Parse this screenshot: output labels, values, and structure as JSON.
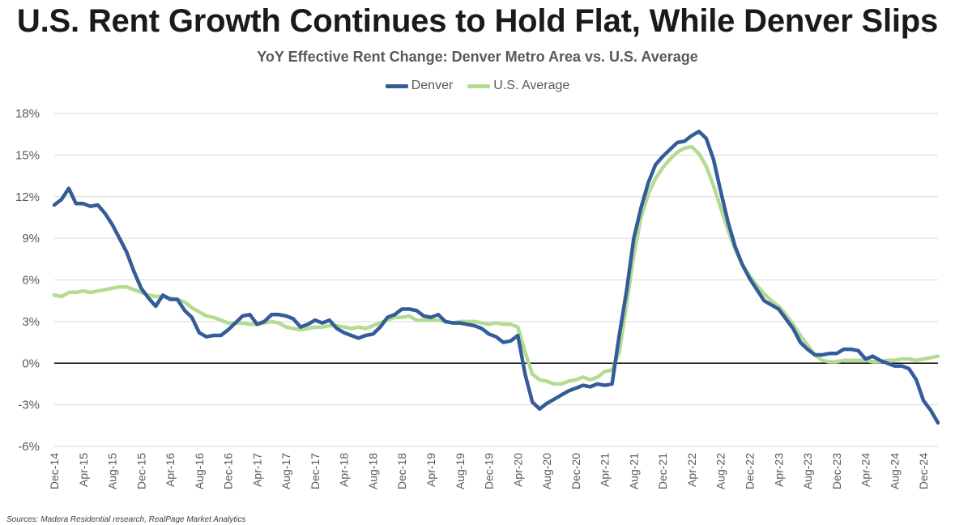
{
  "title": "U.S. Rent Growth Continues to Hold Flat, While Denver Slips",
  "subtitle": "YoY Effective Rent Change: Denver Metro Area vs. U.S. Average",
  "source": "Sources: Madera Residential research, RealPage Market Analytics",
  "colors": {
    "denver": "#345c99",
    "us": "#b3dc92",
    "grid": "#d9d9d9",
    "zero": "#000000"
  },
  "chart_data": {
    "type": "line",
    "title": "YoY Effective Rent Change: Denver Metro Area vs. U.S. Average",
    "xlabel": "",
    "ylabel": "",
    "ylim": [
      -6,
      18
    ],
    "yticks": [
      18,
      15,
      12,
      9,
      6,
      3,
      0,
      -3,
      -6
    ],
    "ytick_labels": [
      "18%",
      "15%",
      "12%",
      "9%",
      "6%",
      "3%",
      "0%",
      "-3%",
      "-6%"
    ],
    "xtick_labels": [
      "Dec-14",
      "Apr-15",
      "Aug-15",
      "Dec-15",
      "Apr-16",
      "Aug-16",
      "Dec-16",
      "Apr-17",
      "Aug-17",
      "Dec-17",
      "Apr-18",
      "Aug-18",
      "Dec-18",
      "Apr-19",
      "Aug-19",
      "Dec-19",
      "Apr-20",
      "Aug-20",
      "Dec-20",
      "Apr-21",
      "Aug-21",
      "Dec-21",
      "Apr-22",
      "Aug-22",
      "Dec-22",
      "Apr-23",
      "Aug-23",
      "Dec-23",
      "Apr-24",
      "Aug-24",
      "Dec-24"
    ],
    "x_start": "Dec-14",
    "x_end": "Dec-24",
    "x_frequency": "monthly",
    "grid": true,
    "legend": "top-center",
    "series": [
      {
        "name": "Denver",
        "values": [
          11.4,
          11.8,
          12.6,
          11.5,
          11.5,
          11.3,
          11.4,
          10.8,
          10.0,
          9.0,
          8.0,
          6.6,
          5.4,
          4.7,
          4.1,
          4.9,
          4.6,
          4.6,
          3.8,
          3.3,
          2.2,
          1.9,
          2.0,
          2.0,
          2.4,
          2.9,
          3.4,
          3.5,
          2.8,
          3.0,
          3.5,
          3.5,
          3.4,
          3.2,
          2.6,
          2.8,
          3.1,
          2.9,
          3.1,
          2.5,
          2.2,
          2.0,
          1.8,
          2.0,
          2.1,
          2.6,
          3.3,
          3.5,
          3.9,
          3.9,
          3.8,
          3.4,
          3.3,
          3.5,
          3.0,
          2.9,
          2.9,
          2.8,
          2.7,
          2.5,
          2.1,
          1.9,
          1.5,
          1.6,
          2.0,
          -0.8,
          -2.8,
          -3.3,
          -2.9,
          -2.6,
          -2.3,
          -2.0,
          -1.8,
          -1.6,
          -1.7,
          -1.5,
          -1.6,
          -1.5,
          2.0,
          5.2,
          9.0,
          11.2,
          13.0,
          14.3,
          14.9,
          15.4,
          15.9,
          16.0,
          16.4,
          16.7,
          16.2,
          14.7,
          12.4,
          10.2,
          8.4,
          7.1,
          6.1,
          5.3,
          4.5,
          4.2,
          3.9,
          3.2,
          2.5,
          1.5,
          1.0,
          0.6,
          0.6,
          0.7,
          0.7,
          1.0,
          1.0,
          0.9,
          0.3,
          0.5,
          0.2,
          0.0,
          -0.2,
          -0.2,
          -0.4,
          -1.2,
          -2.7,
          -3.4,
          -4.3
        ]
      },
      {
        "name": "U.S. Average",
        "values": [
          4.9,
          4.8,
          5.1,
          5.1,
          5.2,
          5.1,
          5.2,
          5.3,
          5.4,
          5.5,
          5.5,
          5.3,
          5.1,
          4.9,
          4.8,
          4.8,
          4.7,
          4.6,
          4.4,
          4.0,
          3.7,
          3.4,
          3.3,
          3.1,
          2.9,
          2.9,
          2.9,
          2.8,
          2.8,
          2.9,
          3.0,
          2.9,
          2.6,
          2.5,
          2.4,
          2.5,
          2.6,
          2.6,
          2.7,
          2.7,
          2.6,
          2.5,
          2.6,
          2.5,
          2.7,
          2.9,
          3.1,
          3.3,
          3.3,
          3.4,
          3.1,
          3.1,
          3.1,
          3.1,
          3.0,
          2.9,
          3.0,
          3.0,
          3.0,
          2.9,
          2.8,
          2.9,
          2.8,
          2.8,
          2.6,
          0.8,
          -0.8,
          -1.2,
          -1.3,
          -1.5,
          -1.5,
          -1.3,
          -1.2,
          -1.0,
          -1.2,
          -1.0,
          -0.6,
          -0.5,
          0.8,
          4.2,
          7.8,
          10.5,
          12.2,
          13.3,
          14.1,
          14.7,
          15.2,
          15.5,
          15.6,
          15.1,
          14.2,
          12.8,
          11.2,
          9.6,
          8.2,
          7.1,
          6.3,
          5.6,
          5.0,
          4.5,
          4.1,
          3.5,
          2.8,
          2.0,
          1.3,
          0.6,
          0.2,
          0.1,
          0.1,
          0.2,
          0.2,
          0.2,
          0.2,
          0.1,
          0.1,
          0.2,
          0.2,
          0.3,
          0.3,
          0.2,
          0.3,
          0.4,
          0.5
        ]
      }
    ]
  }
}
